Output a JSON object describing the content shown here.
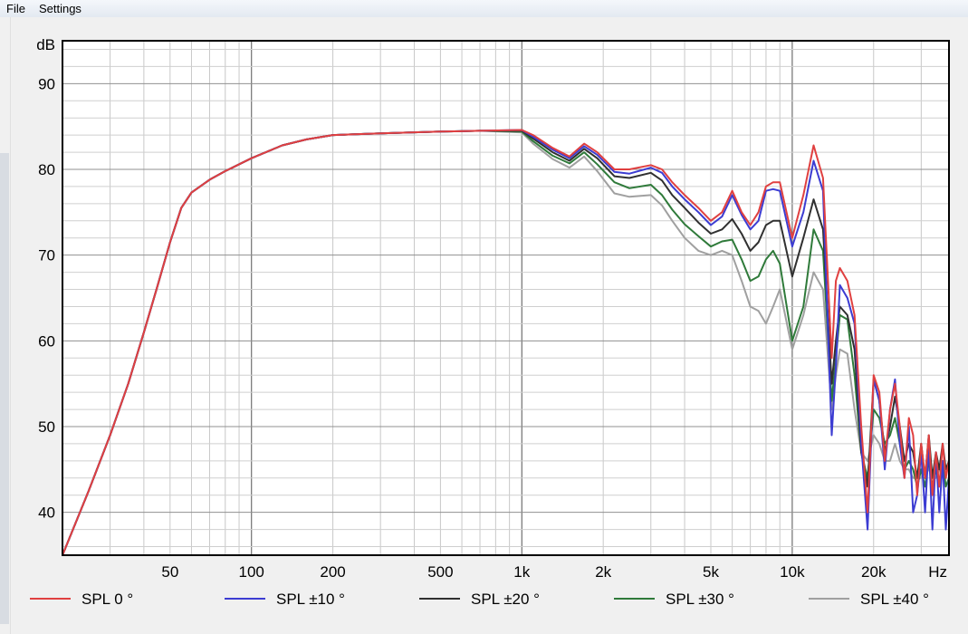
{
  "menu": {
    "file_label": "File",
    "settings_label": "Settings"
  },
  "chart_data": {
    "type": "line",
    "xscale": "log",
    "xlim": [
      20,
      38000
    ],
    "ylim": [
      35,
      95
    ],
    "xlabel": "Hz",
    "ylabel": "dB",
    "grid": true,
    "legend_position": "bottom",
    "y_ticks": [
      40,
      50,
      60,
      70,
      80,
      90
    ],
    "x_ticks": [
      {
        "value": 50,
        "label": "50"
      },
      {
        "value": 100,
        "label": "100"
      },
      {
        "value": 200,
        "label": "200"
      },
      {
        "value": 500,
        "label": "500"
      },
      {
        "value": 1000,
        "label": "1k"
      },
      {
        "value": 2000,
        "label": "2k"
      },
      {
        "value": 5000,
        "label": "5k"
      },
      {
        "value": 10000,
        "label": "10k"
      },
      {
        "value": 20000,
        "label": "20k"
      }
    ],
    "series": [
      {
        "name": "SPL 0 °",
        "color": "#e04040",
        "x": [
          20,
          25,
          30,
          35,
          40,
          45,
          50,
          55,
          60,
          70,
          80,
          100,
          130,
          160,
          200,
          300,
          500,
          700,
          1000,
          1100,
          1300,
          1500,
          1700,
          1900,
          2200,
          2500,
          3000,
          3300,
          3600,
          4000,
          4500,
          5000,
          5500,
          6000,
          6500,
          7000,
          7500,
          8000,
          8500,
          9000,
          10000,
          11000,
          12000,
          13000,
          14000,
          14500,
          15000,
          16000,
          17000,
          18000,
          19000,
          20000,
          21000,
          22000,
          23000,
          24000,
          25000,
          26000,
          27000,
          28000,
          29000,
          30000,
          31000,
          32000,
          33000,
          34000,
          35000,
          36000,
          37000,
          38000
        ],
        "y": [
          35,
          42.5,
          49,
          55,
          61,
          66.5,
          71.5,
          75.5,
          77.3,
          78.8,
          79.8,
          81.3,
          82.8,
          83.5,
          84,
          84.2,
          84.4,
          84.5,
          84.6,
          84,
          82.5,
          81.5,
          83,
          82,
          80,
          80,
          80.5,
          80,
          78.5,
          77,
          75.5,
          74,
          75,
          77.5,
          75,
          73.5,
          75,
          78,
          78.5,
          78.5,
          72,
          77,
          82.8,
          79,
          58,
          67,
          68.5,
          67,
          63,
          50,
          40,
          56,
          54,
          46,
          52,
          55,
          50,
          44,
          51,
          49,
          42,
          48,
          44,
          49,
          42,
          47,
          43,
          48,
          44,
          46
        ]
      },
      {
        "name": "SPL ±10 °",
        "color": "#3c3cd2",
        "x": [
          20,
          25,
          30,
          35,
          40,
          45,
          50,
          55,
          60,
          70,
          80,
          100,
          130,
          160,
          200,
          300,
          500,
          700,
          1000,
          1100,
          1300,
          1500,
          1700,
          1900,
          2200,
          2500,
          3000,
          3300,
          3600,
          4000,
          4500,
          5000,
          5500,
          6000,
          6500,
          7000,
          7500,
          8000,
          8500,
          9000,
          10000,
          11000,
          12000,
          13000,
          14000,
          14500,
          15000,
          16000,
          17000,
          18000,
          19000,
          20000,
          21000,
          22000,
          23000,
          24000,
          25000,
          26000,
          27000,
          28000,
          29000,
          30000,
          31000,
          32000,
          33000,
          34000,
          35000,
          36000,
          37000,
          38000
        ],
        "y": [
          35,
          42.5,
          49,
          55,
          61,
          66.5,
          71.5,
          75.5,
          77.3,
          78.8,
          79.8,
          81.3,
          82.8,
          83.5,
          84,
          84.2,
          84.4,
          84.5,
          84.6,
          83.8,
          82.3,
          81.3,
          82.7,
          81.7,
          79.7,
          79.5,
          80.2,
          79.6,
          78,
          76.5,
          75,
          73.5,
          74.5,
          77,
          74.7,
          73,
          74,
          77.5,
          77.7,
          77.5,
          71,
          75,
          81,
          77.5,
          49,
          57,
          66.5,
          65,
          62,
          48,
          38,
          55.5,
          53,
          45,
          52,
          55.5,
          48,
          44,
          50,
          40,
          42,
          47,
          40,
          48,
          38,
          47,
          40,
          46,
          38,
          44
        ]
      },
      {
        "name": "SPL ±20 °",
        "color": "#303030",
        "x": [
          20,
          25,
          30,
          35,
          40,
          45,
          50,
          55,
          60,
          70,
          80,
          100,
          130,
          160,
          200,
          300,
          500,
          700,
          1000,
          1100,
          1300,
          1500,
          1700,
          1900,
          2200,
          2500,
          3000,
          3300,
          3600,
          4000,
          4500,
          5000,
          5500,
          6000,
          6500,
          7000,
          7500,
          8000,
          8500,
          9000,
          10000,
          11000,
          12000,
          13000,
          14000,
          14500,
          15000,
          16000,
          17000,
          18000,
          19000,
          20000,
          21000,
          22000,
          23000,
          24000,
          25000,
          26000,
          27000,
          28000,
          29000,
          30000,
          31000,
          32000,
          33000,
          34000,
          35000,
          36000,
          37000,
          38000
        ],
        "y": [
          35,
          42.5,
          49,
          55,
          61,
          66.5,
          71.5,
          75.5,
          77.3,
          78.8,
          79.8,
          81.3,
          82.8,
          83.5,
          84,
          84.2,
          84.4,
          84.5,
          84.5,
          83.6,
          82,
          81,
          82.4,
          81.3,
          79.2,
          79,
          79.6,
          78.7,
          77,
          75.5,
          73.8,
          72.5,
          73,
          74.2,
          72.5,
          70.5,
          71.5,
          73.5,
          74,
          74,
          67.5,
          72,
          76.5,
          73,
          55,
          60,
          64,
          63,
          59,
          47,
          43,
          55.5,
          53,
          47,
          50,
          53.5,
          50,
          46,
          48,
          47,
          44,
          48,
          44,
          49,
          44,
          47,
          45,
          48,
          45,
          46
        ]
      },
      {
        "name": "SPL ±30 °",
        "color": "#2f7a3a",
        "x": [
          20,
          25,
          30,
          35,
          40,
          45,
          50,
          55,
          60,
          70,
          80,
          100,
          130,
          160,
          200,
          300,
          500,
          700,
          1000,
          1100,
          1300,
          1500,
          1700,
          1900,
          2200,
          2500,
          3000,
          3300,
          3600,
          4000,
          4500,
          5000,
          5500,
          6000,
          6500,
          7000,
          7500,
          8000,
          8500,
          9000,
          10000,
          11000,
          12000,
          13000,
          14000,
          14500,
          15000,
          16000,
          17000,
          18000,
          19000,
          20000,
          21000,
          22000,
          23000,
          24000,
          25000,
          26000,
          27000,
          28000,
          29000,
          30000,
          31000,
          32000,
          33000,
          34000,
          35000,
          36000,
          37000,
          38000
        ],
        "y": [
          35,
          42.5,
          49,
          55,
          61,
          66.5,
          71.5,
          75.5,
          77.3,
          78.8,
          79.8,
          81.3,
          82.8,
          83.5,
          84,
          84.2,
          84.4,
          84.5,
          84.4,
          83.3,
          81.6,
          80.7,
          82,
          80.6,
          78.5,
          77.8,
          78.2,
          77,
          75.3,
          73.6,
          72.2,
          71,
          71.6,
          71.8,
          69.5,
          67,
          67.5,
          69.5,
          70.5,
          69,
          60,
          64,
          73,
          70.5,
          53,
          58,
          63,
          62.5,
          56,
          47,
          44,
          52,
          51,
          48,
          49,
          51,
          48,
          45,
          46,
          45,
          43,
          45,
          43,
          46,
          43,
          45,
          43,
          46,
          43,
          44
        ]
      },
      {
        "name": "SPL ±40 °",
        "color": "#a0a0a0",
        "x": [
          20,
          25,
          30,
          35,
          40,
          45,
          50,
          55,
          60,
          70,
          80,
          100,
          130,
          160,
          200,
          300,
          500,
          700,
          1000,
          1100,
          1300,
          1500,
          1700,
          1900,
          2200,
          2500,
          3000,
          3300,
          3600,
          4000,
          4500,
          5000,
          5500,
          6000,
          6500,
          7000,
          7500,
          8000,
          8500,
          9000,
          10000,
          11000,
          12000,
          13000,
          14000,
          14500,
          15000,
          16000,
          17000,
          18000,
          19000,
          20000,
          21000,
          22000,
          23000,
          24000,
          25000,
          26000,
          27000,
          28000,
          29000,
          30000,
          31000,
          32000,
          33000,
          34000,
          35000,
          36000,
          37000,
          38000
        ],
        "y": [
          35,
          42.5,
          49,
          55,
          61,
          66.5,
          71.5,
          75.5,
          77.3,
          78.8,
          79.8,
          81.3,
          82.8,
          83.5,
          84,
          84.2,
          84.4,
          84.5,
          84.3,
          83,
          81.2,
          80.2,
          81.5,
          79.8,
          77.2,
          76.8,
          77,
          75.8,
          74,
          72,
          70.5,
          70,
          70.5,
          70,
          67,
          64,
          63.5,
          62,
          64,
          66,
          59,
          63,
          68,
          66,
          52,
          56,
          59,
          58.5,
          52,
          47,
          46,
          49,
          48,
          46,
          46,
          48,
          46,
          45,
          45,
          44,
          44,
          44,
          45,
          45,
          44,
          44,
          45,
          45,
          45,
          45
        ]
      }
    ]
  }
}
